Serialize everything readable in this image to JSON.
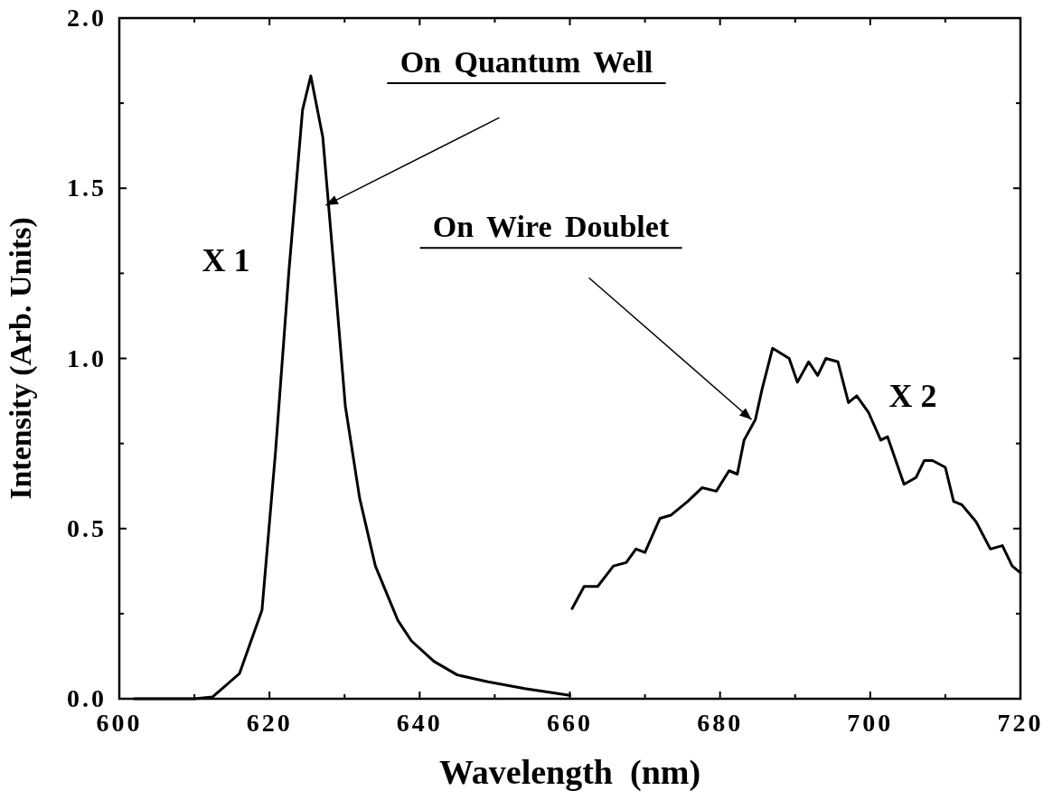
{
  "chart_data": {
    "type": "line",
    "xlabel": "Wavelength  (nm)",
    "ylabel": "Intensity (Arb. Units)",
    "xlim": [
      600,
      720
    ],
    "ylim": [
      0,
      2.0
    ],
    "xticks": [
      600,
      {
        "value": 610,
        "label": null
      },
      620,
      {
        "value": 630,
        "label": null
      },
      640,
      {
        "value": 650,
        "label": null
      },
      660,
      {
        "value": 670,
        "label": null
      },
      680,
      {
        "value": 690,
        "label": null
      },
      700,
      {
        "value": 710,
        "label": null
      },
      720
    ],
    "yticks": [
      {
        "value": 0,
        "label": "0.0"
      },
      {
        "value": 0.25,
        "label": null
      },
      {
        "value": 0.5,
        "label": "0.5"
      },
      {
        "value": 0.75,
        "label": null
      },
      {
        "value": 1.0,
        "label": "1.0"
      },
      {
        "value": 1.25,
        "label": null
      },
      {
        "value": 1.5,
        "label": "1.5"
      },
      {
        "value": 1.75,
        "label": null
      },
      {
        "value": 2.0,
        "label": "2.0"
      }
    ],
    "grid": false,
    "series": [
      {
        "color": "#000000",
        "x": [
          602,
          605,
          610,
          612.4,
          616,
          619,
          620.8,
          622.6,
          624.4,
          625.5,
          627.1,
          628.6,
          630.1,
          632,
          634.1,
          637.1,
          638.9,
          641.9,
          645,
          649.1,
          654,
          660
        ],
        "values": [
          0,
          0,
          0,
          0.005,
          0.074,
          0.26,
          0.725,
          1.26,
          1.73,
          1.83,
          1.65,
          1.26,
          0.86,
          0.59,
          0.39,
          0.23,
          0.17,
          0.11,
          0.07,
          0.05,
          0.03,
          0.01
        ]
      },
      {
        "color": "#000000",
        "x": [
          660.3,
          661.9,
          663.7,
          665.8,
          667.5,
          668.8,
          670,
          672,
          673.5,
          675.7,
          677.6,
          679.5,
          681.2,
          682.3,
          683.2,
          684.7,
          685.6,
          687,
          689.2,
          690.3,
          691.8,
          693,
          694.1,
          695.7,
          697.1,
          698.2,
          699.8,
          701.4,
          702.3,
          704.5,
          706.1,
          707.2,
          708.3,
          710,
          711.1,
          712.2,
          714.1,
          716,
          717.6,
          718.9,
          720
        ],
        "values": [
          0.265,
          0.33,
          0.33,
          0.39,
          0.4,
          0.44,
          0.43,
          0.53,
          0.54,
          0.58,
          0.62,
          0.61,
          0.67,
          0.66,
          0.76,
          0.82,
          0.91,
          1.03,
          1.0,
          0.93,
          0.99,
          0.95,
          1.0,
          0.99,
          0.87,
          0.89,
          0.84,
          0.76,
          0.77,
          0.63,
          0.65,
          0.7,
          0.7,
          0.68,
          0.58,
          0.57,
          0.52,
          0.44,
          0.45,
          0.39,
          0.37
        ]
      }
    ],
    "annotations": [
      {
        "text": "On Quantum Well",
        "x": 627.5,
        "y": 1.45
      },
      {
        "text": "On Wire Doublet",
        "x": 684.2,
        "y": 0.82
      },
      "X 1",
      "X 2"
    ]
  }
}
